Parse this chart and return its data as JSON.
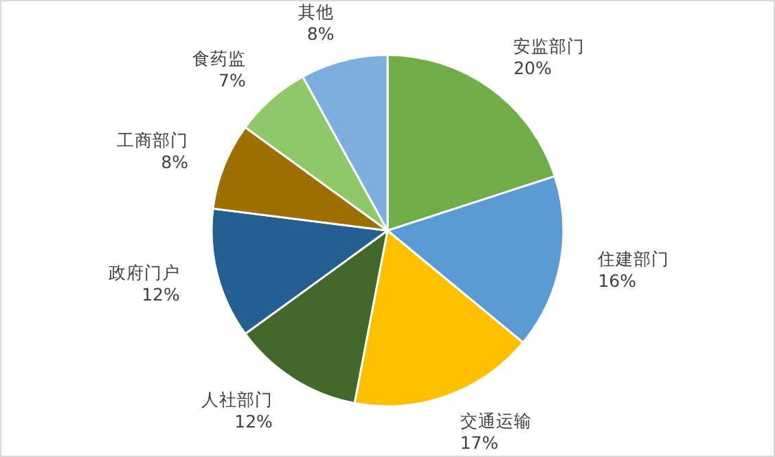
{
  "chart_data": {
    "type": "pie",
    "categories": [
      "安监部门",
      "住建部门",
      "交通运输",
      "人社部门",
      "政府门户",
      "工商部门",
      "食药监",
      "其他"
    ],
    "values": [
      20,
      16,
      17,
      12,
      12,
      8,
      7,
      8
    ],
    "colors": [
      "#70ad47",
      "#5b9bd5",
      "#ffc000",
      "#43682b",
      "#255e91",
      "#9e7000",
      "#8fc869",
      "#7cafdd"
    ],
    "value_labels": [
      "20%",
      "16%",
      "17%",
      "12%",
      "12%",
      "8%",
      "7%",
      "8%"
    ],
    "legend": false
  }
}
